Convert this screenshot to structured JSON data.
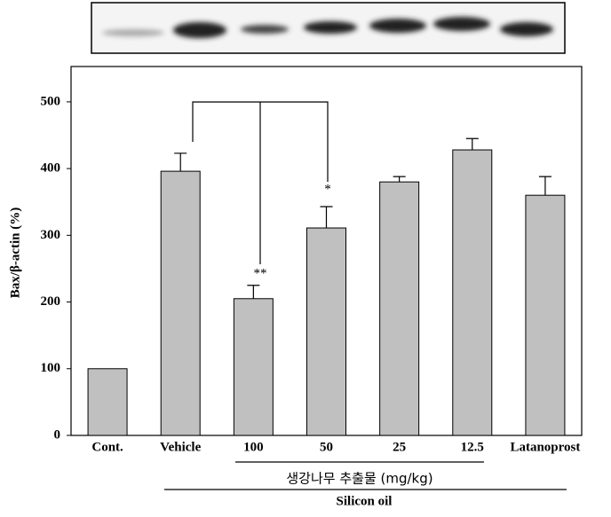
{
  "chart_data": {
    "type": "bar",
    "y_label": "Bax/β-actin (%)",
    "categories": [
      "Cont.",
      "Vehicle",
      "100",
      "50",
      "25",
      "12.5",
      "Latanoprost"
    ],
    "values": [
      100,
      396,
      205,
      311,
      380,
      428,
      360
    ],
    "errors": [
      null,
      27,
      20,
      32,
      8,
      17,
      28
    ],
    "color": "#c0c0c0",
    "ylim": [
      0,
      553
    ],
    "yticks": [
      0,
      100,
      200,
      300,
      400,
      500
    ],
    "annotations": [
      "**",
      "*"
    ],
    "group_labels": [
      "생강나무 추출물 (mg/kg)",
      "Silicon oil"
    ]
  }
}
